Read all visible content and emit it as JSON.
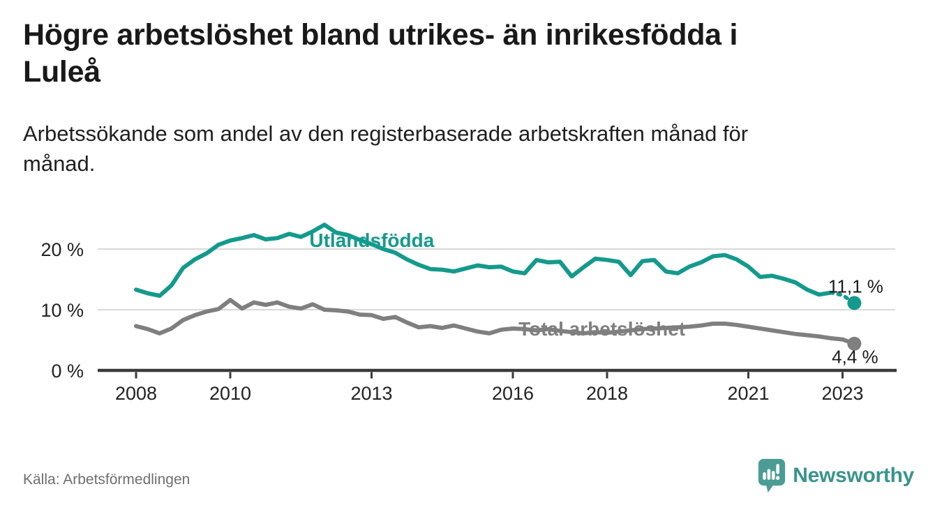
{
  "header": {
    "title_lines": [
      "Högre arbetslöshet bland utrikes- än inrikesfödda i",
      "Luleå"
    ],
    "subtitle_lines": [
      "Arbetssökande som andel av den registerbaserade arbetskraften månad för",
      "månad."
    ]
  },
  "footer": {
    "source": "Källa: Arbetsförmedlingen",
    "logo_text": "Newsworthy"
  },
  "colors": {
    "title": "#191919",
    "subtitle": "#1f1f1f",
    "source": "#6e6e6e",
    "logo_icon": "#4c9c96",
    "logo_text": "#39948c"
  },
  "chart_data": {
    "type": "line",
    "title": "Högre arbetslöshet bland utrikes- än inrikesfödda i Luleå",
    "subtitle": "Arbetssökande som andel av den registerbaserade arbetskraften månad för månad.",
    "xlabel": "",
    "ylabel": "",
    "xlim": [
      2007.2,
      2024.2
    ],
    "ylim": [
      0,
      27
    ],
    "grid": "horizontal-only",
    "legend": "inline-labels",
    "grid_color": "#d9d9d9",
    "axis_color": "#3a3a3a",
    "tick_text_color": "#222222",
    "value_label_color": "#1a1a1a",
    "y_ticks": [
      {
        "value": 20,
        "label": "20 %"
      },
      {
        "value": 10,
        "label": "10 %"
      },
      {
        "value": 0,
        "label": "0 %"
      }
    ],
    "x_ticks": [
      {
        "value": 2008,
        "label": "2008"
      },
      {
        "value": 2010,
        "label": "2010"
      },
      {
        "value": 2013,
        "label": "2013"
      },
      {
        "value": 2016,
        "label": "2016"
      },
      {
        "value": 2018,
        "label": "2018"
      },
      {
        "value": 2021,
        "label": "2021"
      },
      {
        "value": 2023,
        "label": "2023"
      }
    ],
    "series": [
      {
        "id": "utlandsfodda",
        "name": "Utlandsfödda",
        "color": "#149a8d",
        "end_value": 11.1,
        "end_label": "11,1 %",
        "end_label_offset": [
          2,
          -15
        ],
        "label_pos": [
          2011.68,
          21.5
        ],
        "dash_from": 2022.75,
        "points": [
          [
            2008.0,
            13.3
          ],
          [
            2008.25,
            12.7
          ],
          [
            2008.5,
            12.3
          ],
          [
            2008.75,
            14.0
          ],
          [
            2009.0,
            16.9
          ],
          [
            2009.25,
            18.3
          ],
          [
            2009.5,
            19.3
          ],
          [
            2009.75,
            20.7
          ],
          [
            2010.0,
            21.4
          ],
          [
            2010.25,
            21.8
          ],
          [
            2010.5,
            22.3
          ],
          [
            2010.75,
            21.6
          ],
          [
            2011.0,
            21.8
          ],
          [
            2011.25,
            22.5
          ],
          [
            2011.5,
            22.0
          ],
          [
            2011.75,
            22.9
          ],
          [
            2012.0,
            24.0
          ],
          [
            2012.25,
            22.7
          ],
          [
            2012.5,
            22.3
          ],
          [
            2012.75,
            21.5
          ],
          [
            2013.0,
            20.8
          ],
          [
            2013.25,
            20.0
          ],
          [
            2013.5,
            19.4
          ],
          [
            2013.75,
            18.3
          ],
          [
            2014.0,
            17.4
          ],
          [
            2014.25,
            16.7
          ],
          [
            2014.5,
            16.6
          ],
          [
            2014.75,
            16.3
          ],
          [
            2015.0,
            16.8
          ],
          [
            2015.25,
            17.3
          ],
          [
            2015.5,
            17.0
          ],
          [
            2015.75,
            17.1
          ],
          [
            2016.0,
            16.3
          ],
          [
            2016.25,
            16.0
          ],
          [
            2016.5,
            18.2
          ],
          [
            2016.75,
            17.8
          ],
          [
            2017.0,
            17.9
          ],
          [
            2017.25,
            15.5
          ],
          [
            2017.5,
            17.0
          ],
          [
            2017.75,
            18.4
          ],
          [
            2018.0,
            18.2
          ],
          [
            2018.25,
            17.9
          ],
          [
            2018.5,
            15.7
          ],
          [
            2018.75,
            18.0
          ],
          [
            2019.0,
            18.2
          ],
          [
            2019.25,
            16.3
          ],
          [
            2019.5,
            16.0
          ],
          [
            2019.75,
            17.1
          ],
          [
            2020.0,
            17.8
          ],
          [
            2020.25,
            18.8
          ],
          [
            2020.5,
            19.0
          ],
          [
            2020.75,
            18.3
          ],
          [
            2021.0,
            17.1
          ],
          [
            2021.25,
            15.4
          ],
          [
            2021.5,
            15.6
          ],
          [
            2021.75,
            15.1
          ],
          [
            2022.0,
            14.5
          ],
          [
            2022.25,
            13.3
          ],
          [
            2022.5,
            12.5
          ],
          [
            2022.75,
            12.8
          ],
          [
            2023.0,
            12.4
          ],
          [
            2023.25,
            11.1
          ]
        ]
      },
      {
        "id": "total",
        "name": "Total arbetslöshet",
        "color": "#7f7f7f",
        "end_value": 4.4,
        "end_label": "4,4 %",
        "end_label_offset": [
          1,
          28
        ],
        "label_pos": [
          2016.12,
          6.9
        ],
        "dash_from": null,
        "points": [
          [
            2008.0,
            7.3
          ],
          [
            2008.25,
            6.8
          ],
          [
            2008.5,
            6.1
          ],
          [
            2008.75,
            6.9
          ],
          [
            2009.0,
            8.3
          ],
          [
            2009.25,
            9.1
          ],
          [
            2009.5,
            9.7
          ],
          [
            2009.75,
            10.1
          ],
          [
            2010.0,
            11.6
          ],
          [
            2010.25,
            10.2
          ],
          [
            2010.5,
            11.2
          ],
          [
            2010.75,
            10.8
          ],
          [
            2011.0,
            11.2
          ],
          [
            2011.25,
            10.5
          ],
          [
            2011.5,
            10.2
          ],
          [
            2011.75,
            10.9
          ],
          [
            2012.0,
            10.0
          ],
          [
            2012.25,
            9.9
          ],
          [
            2012.5,
            9.7
          ],
          [
            2012.75,
            9.2
          ],
          [
            2013.0,
            9.1
          ],
          [
            2013.25,
            8.5
          ],
          [
            2013.5,
            8.8
          ],
          [
            2013.75,
            7.9
          ],
          [
            2014.0,
            7.1
          ],
          [
            2014.25,
            7.3
          ],
          [
            2014.5,
            7.0
          ],
          [
            2014.75,
            7.4
          ],
          [
            2015.0,
            6.9
          ],
          [
            2015.25,
            6.4
          ],
          [
            2015.5,
            6.1
          ],
          [
            2015.75,
            6.7
          ],
          [
            2016.0,
            6.9
          ],
          [
            2016.25,
            6.8
          ],
          [
            2016.5,
            6.6
          ],
          [
            2016.75,
            6.8
          ],
          [
            2017.0,
            6.5
          ],
          [
            2017.25,
            6.3
          ],
          [
            2017.5,
            6.1
          ],
          [
            2017.75,
            6.3
          ],
          [
            2018.0,
            6.2
          ],
          [
            2018.25,
            6.4
          ],
          [
            2018.5,
            6.6
          ],
          [
            2018.75,
            6.8
          ],
          [
            2019.0,
            6.9
          ],
          [
            2019.25,
            7.0
          ],
          [
            2019.5,
            7.1
          ],
          [
            2019.75,
            7.2
          ],
          [
            2020.0,
            7.4
          ],
          [
            2020.25,
            7.7
          ],
          [
            2020.5,
            7.7
          ],
          [
            2020.75,
            7.5
          ],
          [
            2021.0,
            7.2
          ],
          [
            2021.25,
            6.9
          ],
          [
            2021.5,
            6.6
          ],
          [
            2021.75,
            6.3
          ],
          [
            2022.0,
            6.0
          ],
          [
            2022.25,
            5.8
          ],
          [
            2022.5,
            5.6
          ],
          [
            2022.75,
            5.3
          ],
          [
            2023.0,
            5.1
          ],
          [
            2023.25,
            4.4
          ]
        ]
      }
    ]
  }
}
